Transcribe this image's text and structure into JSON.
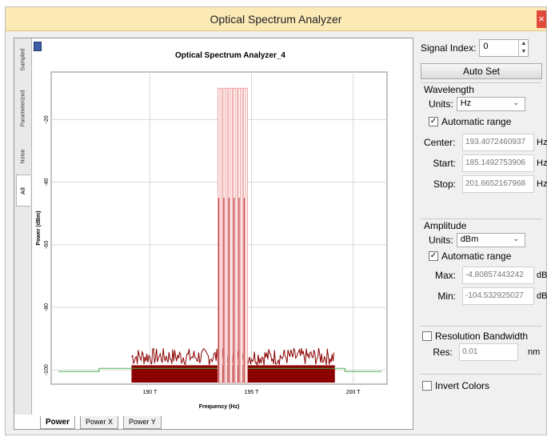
{
  "window": {
    "title": "Optical Spectrum Analyzer",
    "close_glyph": "×"
  },
  "left_tabs": [
    "All",
    "Noise",
    "Parameterized",
    "Sampled"
  ],
  "bottom_tabs": [
    "Power",
    "Power X",
    "Power Y"
  ],
  "chart_data": {
    "type": "line",
    "title": "Optical Spectrum Analyzer_4",
    "xlabel": "Frequency (Hz)",
    "ylabel": "Power (dBm)",
    "xlim": [
      185.1492753906,
      201.6652167968
    ],
    "ylim": [
      -104.532925027,
      -4.80857443242
    ],
    "x_ticks": [
      {
        "value": 190,
        "label": "190 T"
      },
      {
        "value": 195,
        "label": "195 T"
      },
      {
        "value": 200,
        "label": "200 T"
      }
    ],
    "y_ticks": [
      {
        "value": -20,
        "label": "-20"
      },
      {
        "value": -40,
        "label": "-40"
      },
      {
        "value": -60,
        "label": "-60"
      },
      {
        "value": -80,
        "label": "-80"
      },
      {
        "value": -100,
        "label": "-100"
      }
    ],
    "grid": true,
    "series": [
      {
        "kind": "noise_floor",
        "color": "#8b0000",
        "x_range": [
          189.1,
          199.1
        ],
        "level": -98.5,
        "top": -93
      },
      {
        "kind": "signal_channels",
        "color": "#f0a0a0",
        "peak_x": [
          193.45,
          193.7,
          193.95,
          194.2,
          194.45,
          194.7
        ],
        "peak_y": [
          -10,
          -10,
          -10,
          -10,
          -10,
          -10
        ],
        "inner_y": [
          -45,
          -45,
          -45,
          -45,
          -45,
          -45
        ]
      },
      {
        "kind": "baseline",
        "color": "#4caf50",
        "x": [
          185.5,
          187.5,
          187.5,
          189.1,
          199.1,
          199.6,
          199.6,
          201.4
        ],
        "y": [
          -100.5,
          -100.5,
          -99.5,
          -99.5,
          -99.5,
          -99.5,
          -100.5,
          -100.5
        ]
      }
    ]
  },
  "panel": {
    "signal_index_label": "Signal Index:",
    "signal_index_value": "0",
    "auto_set": "Auto Set",
    "wavelength": {
      "title": "Wavelength",
      "units_label": "Units:",
      "units_value": "Hz",
      "auto_range_label": "Automatic range",
      "auto_range_checked": "✓",
      "center_label": "Center:",
      "center_value": "193.4072460937",
      "start_label": "Start:",
      "start_value": "185.1492753906",
      "stop_label": "Stop:",
      "stop_value": "201.6652167968",
      "unit": "Hz"
    },
    "amplitude": {
      "title": "Amplitude",
      "units_label": "Units:",
      "units_value": "dBm",
      "auto_range_label": "Automatic range",
      "auto_range_checked": "✓",
      "max_label": "Max:",
      "max_value": "-4.80857443242",
      "min_label": "Min:",
      "min_value": "-104.532925027",
      "unit": "dBm"
    },
    "resolution": {
      "title": "Resolution Bandwidth",
      "res_label": "Res:",
      "res_value": "0.01",
      "unit": "nm"
    },
    "invert_colors": "Invert Colors"
  }
}
